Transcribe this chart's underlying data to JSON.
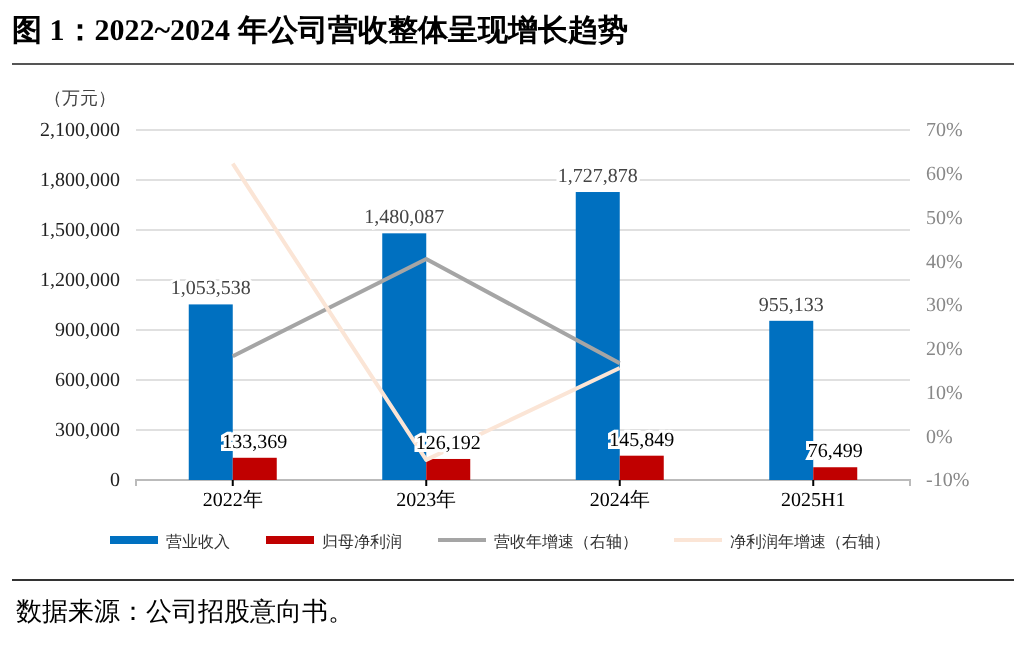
{
  "chart_data": {
    "type": "bar",
    "title": "图 1：2022~2024 年公司营收整体呈现增长趋势",
    "ylabel": "（万元）",
    "categories": [
      "2022年",
      "2023年",
      "2024年",
      "2025H1"
    ],
    "series": [
      {
        "name": "营业收入",
        "color": "#0070c0",
        "values": [
          1053538,
          1480087,
          1727878,
          955133
        ],
        "value_labels": [
          "1,053,538",
          "1,480,087",
          "1,727,878",
          "955,133"
        ]
      },
      {
        "name": "归母净利润",
        "color": "#c00000",
        "values": [
          133369,
          126192,
          145849,
          76499
        ],
        "value_labels": [
          "133,369",
          "126,192",
          "145,849",
          "76,499"
        ]
      },
      {
        "name": "营收年增速（右轴）",
        "type": "line",
        "axis": "y2",
        "color": "#a5a5a5",
        "values": [
          18.3,
          40.5,
          16.7,
          null
        ]
      },
      {
        "name": "净利润年增速（右轴）",
        "type": "line",
        "axis": "y2",
        "color": "#fbe5d6",
        "values": [
          62.3,
          -5.4,
          15.6,
          null
        ]
      }
    ],
    "ylim": [
      0,
      2100000
    ],
    "yticks": [
      {
        "value": 0,
        "label": "0"
      },
      {
        "value": 300000,
        "label": "300,000"
      },
      {
        "value": 600000,
        "label": "600,000"
      },
      {
        "value": 900000,
        "label": "900,000"
      },
      {
        "value": 1200000,
        "label": "1,200,000"
      },
      {
        "value": 1500000,
        "label": "1,500,000"
      },
      {
        "value": 1800000,
        "label": "1,800,000"
      },
      {
        "value": 2100000,
        "label": "2,100,000"
      }
    ],
    "y2lim": [
      -10,
      70
    ],
    "y2ticks": [
      {
        "value": -10,
        "label": "-10%"
      },
      {
        "value": 0,
        "label": "0%"
      },
      {
        "value": 10,
        "label": "10%"
      },
      {
        "value": 20,
        "label": "20%"
      },
      {
        "value": 30,
        "label": "30%"
      },
      {
        "value": 40,
        "label": "40%"
      },
      {
        "value": 50,
        "label": "50%"
      },
      {
        "value": 60,
        "label": "60%"
      },
      {
        "value": 70,
        "label": "70%"
      }
    ],
    "grid": "y",
    "legend": "bottom",
    "marker": "none",
    "line_style": "solid",
    "annotations": [
      "数据来源：公司招股意向书。"
    ]
  }
}
